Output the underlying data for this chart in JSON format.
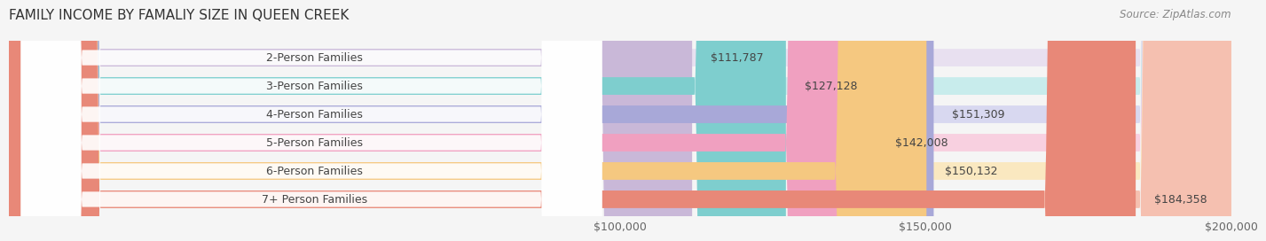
{
  "title": "FAMILY INCOME BY FAMALIY SIZE IN QUEEN CREEK",
  "source": "Source: ZipAtlas.com",
  "categories": [
    "2-Person Families",
    "3-Person Families",
    "4-Person Families",
    "5-Person Families",
    "6-Person Families",
    "7+ Person Families"
  ],
  "values": [
    111787,
    127128,
    151309,
    142008,
    150132,
    184358
  ],
  "labels": [
    "$111,787",
    "$127,128",
    "$151,309",
    "$142,008",
    "$150,132",
    "$184,358"
  ],
  "bar_colors": [
    "#c9b8d8",
    "#7ecece",
    "#a8a8d8",
    "#f0a0c0",
    "#f5c880",
    "#e88878"
  ],
  "bar_bg_colors": [
    "#e8e0f0",
    "#c8ecec",
    "#d8d8f0",
    "#f8d0e0",
    "#fae8c0",
    "#f5c0b0"
  ],
  "xlim": [
    0,
    200000
  ],
  "xticks": [
    100000,
    150000,
    200000
  ],
  "xticklabels": [
    "$100,000",
    "$150,000",
    "$200,000"
  ],
  "background_color": "#f5f5f5",
  "bar_height": 0.62,
  "title_fontsize": 11,
  "label_fontsize": 9,
  "tick_fontsize": 9,
  "source_fontsize": 8.5
}
